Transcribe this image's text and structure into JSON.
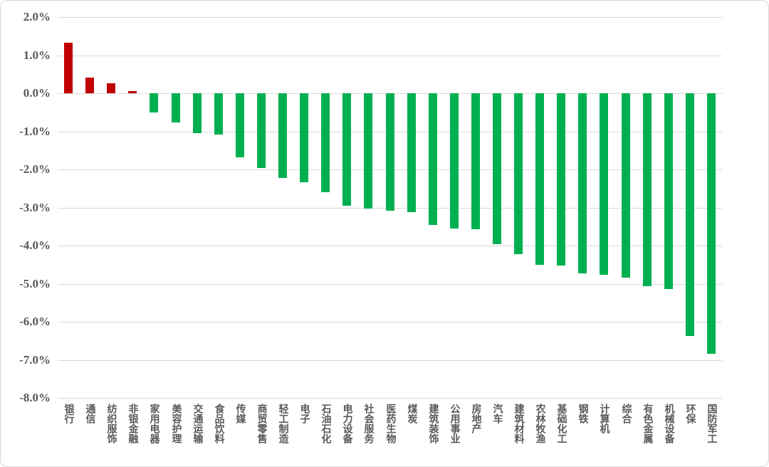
{
  "chart_data": {
    "type": "bar",
    "title": "",
    "xlabel": "",
    "ylabel": "",
    "categories": [
      "银行",
      "通信",
      "纺织服饰",
      "非银金融",
      "家用电器",
      "美容护理",
      "交通运输",
      "食品饮料",
      "传媒",
      "商贸零售",
      "轻工制造",
      "电子",
      "石油石化",
      "电力设备",
      "社会服务",
      "医药生物",
      "煤炭",
      "建筑装饰",
      "公用事业",
      "房地产",
      "汽车",
      "建筑材料",
      "农林牧渔",
      "基础化工",
      "钢铁",
      "计算机",
      "综合",
      "有色金属",
      "机械设备",
      "环保",
      "国防军工"
    ],
    "values": [
      1.33,
      0.42,
      0.26,
      0.05,
      -0.5,
      -0.76,
      -1.05,
      -1.09,
      -1.68,
      -1.96,
      -2.22,
      -2.33,
      -2.6,
      -2.96,
      -3.02,
      -3.09,
      -3.12,
      -3.45,
      -3.55,
      -3.57,
      -3.97,
      -4.23,
      -4.5,
      -4.52,
      -4.72,
      -4.77,
      -4.85,
      -5.06,
      -5.14,
      -6.37,
      -6.85
    ],
    "value_unit": "%",
    "ylim": [
      -8.0,
      2.0
    ],
    "ytick_step": 1.0,
    "ytick_labels": [
      "2.0%",
      "1.0%",
      "0.0%",
      "-1.0%",
      "-2.0%",
      "-3.0%",
      "-4.0%",
      "-5.0%",
      "-6.0%",
      "-7.0%",
      "-8.0%"
    ],
    "grid": true,
    "legend": false,
    "colors": {
      "positive_bar": "#c00000",
      "negative_bar": "#00b050",
      "gridline": "#d9d9d9",
      "axis_text": "#595959",
      "frame_border": "#d9d9d9",
      "background": "#ffffff"
    }
  }
}
